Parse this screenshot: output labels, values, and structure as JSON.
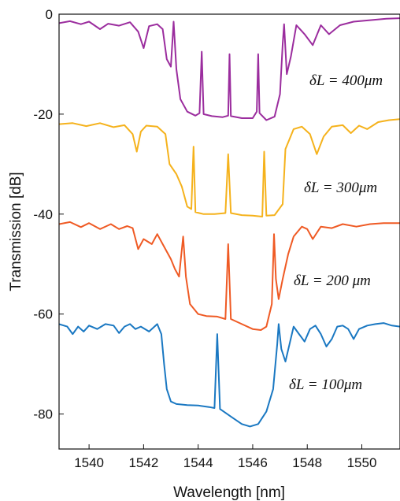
{
  "chart_data": {
    "type": "line",
    "title": "",
    "xlabel": "Wavelength [nm]",
    "ylabel": "Transmission [dB]",
    "xlim": [
      1538.9,
      1551.4
    ],
    "ylim": [
      -87,
      0
    ],
    "xticks": [
      1540,
      1542,
      1544,
      1546,
      1548,
      1550
    ],
    "yticks": [
      0,
      -20,
      -40,
      -60,
      -80
    ],
    "grid": false,
    "legend": "none",
    "series": [
      {
        "color": "#9b2d9e",
        "annotation": "δL = 400μm",
        "points": [
          [
            1538.9,
            -1.8
          ],
          [
            1539.3,
            -1.4
          ],
          [
            1539.7,
            -2.0
          ],
          [
            1540.0,
            -1.5
          ],
          [
            1540.4,
            -3.0
          ],
          [
            1540.7,
            -1.9
          ],
          [
            1541.1,
            -2.3
          ],
          [
            1541.5,
            -1.6
          ],
          [
            1541.8,
            -3.5
          ],
          [
            1542.0,
            -6.8
          ],
          [
            1542.2,
            -2.4
          ],
          [
            1542.5,
            -2.0
          ],
          [
            1542.7,
            -3.0
          ],
          [
            1542.85,
            -9.0
          ],
          [
            1543.0,
            -10.5
          ],
          [
            1543.1,
            -1.5
          ],
          [
            1543.2,
            -11.0
          ],
          [
            1543.35,
            -17.0
          ],
          [
            1543.6,
            -19.5
          ],
          [
            1543.9,
            -20.3
          ],
          [
            1544.05,
            -19.8
          ],
          [
            1544.13,
            -7.5
          ],
          [
            1544.2,
            -20.0
          ],
          [
            1544.5,
            -20.4
          ],
          [
            1544.9,
            -20.6
          ],
          [
            1545.1,
            -20.3
          ],
          [
            1545.15,
            -8.0
          ],
          [
            1545.2,
            -20.4
          ],
          [
            1545.6,
            -20.8
          ],
          [
            1546.0,
            -20.8
          ],
          [
            1546.15,
            -19.5
          ],
          [
            1546.2,
            -8.0
          ],
          [
            1546.25,
            -19.8
          ],
          [
            1546.5,
            -21.2
          ],
          [
            1546.8,
            -20.5
          ],
          [
            1547.0,
            -16.0
          ],
          [
            1547.1,
            -6.0
          ],
          [
            1547.15,
            -2.0
          ],
          [
            1547.25,
            -12.0
          ],
          [
            1547.4,
            -8.5
          ],
          [
            1547.6,
            -2.2
          ],
          [
            1547.9,
            -4.0
          ],
          [
            1548.2,
            -6.2
          ],
          [
            1548.5,
            -2.2
          ],
          [
            1548.8,
            -4.0
          ],
          [
            1549.2,
            -2.2
          ],
          [
            1549.7,
            -1.5
          ],
          [
            1550.3,
            -1.2
          ],
          [
            1550.9,
            -0.9
          ],
          [
            1551.4,
            -0.8
          ]
        ]
      },
      {
        "color": "#f5b21c",
        "annotation": "δL = 300μm",
        "points": [
          [
            1538.9,
            -22.0
          ],
          [
            1539.4,
            -21.8
          ],
          [
            1539.9,
            -22.4
          ],
          [
            1540.4,
            -21.8
          ],
          [
            1540.9,
            -22.6
          ],
          [
            1541.3,
            -22.2
          ],
          [
            1541.6,
            -24.0
          ],
          [
            1541.75,
            -27.5
          ],
          [
            1541.9,
            -23.5
          ],
          [
            1542.1,
            -22.3
          ],
          [
            1542.5,
            -22.5
          ],
          [
            1542.8,
            -24.0
          ],
          [
            1542.95,
            -30.0
          ],
          [
            1543.2,
            -32.0
          ],
          [
            1543.4,
            -34.5
          ],
          [
            1543.6,
            -38.5
          ],
          [
            1543.75,
            -39.0
          ],
          [
            1543.83,
            -26.5
          ],
          [
            1543.9,
            -39.6
          ],
          [
            1544.2,
            -40.0
          ],
          [
            1544.6,
            -40.0
          ],
          [
            1545.0,
            -39.8
          ],
          [
            1545.1,
            -28.0
          ],
          [
            1545.2,
            -39.8
          ],
          [
            1545.6,
            -40.2
          ],
          [
            1546.0,
            -40.3
          ],
          [
            1546.35,
            -40.5
          ],
          [
            1546.42,
            -27.5
          ],
          [
            1546.5,
            -40.3
          ],
          [
            1546.8,
            -40.2
          ],
          [
            1547.1,
            -38.0
          ],
          [
            1547.2,
            -27.0
          ],
          [
            1547.35,
            -25.0
          ],
          [
            1547.5,
            -23.0
          ],
          [
            1547.8,
            -22.5
          ],
          [
            1548.1,
            -24.0
          ],
          [
            1548.35,
            -28.0
          ],
          [
            1548.6,
            -24.5
          ],
          [
            1548.9,
            -22.5
          ],
          [
            1549.3,
            -22.2
          ],
          [
            1549.6,
            -23.8
          ],
          [
            1549.9,
            -22.3
          ],
          [
            1550.2,
            -23.0
          ],
          [
            1550.6,
            -21.6
          ],
          [
            1551.0,
            -21.2
          ],
          [
            1551.4,
            -21.0
          ]
        ]
      },
      {
        "color": "#ef5a24",
        "annotation": "δL = 200 μm",
        "points": [
          [
            1538.9,
            -42.0
          ],
          [
            1539.3,
            -41.6
          ],
          [
            1539.7,
            -42.6
          ],
          [
            1540.0,
            -41.8
          ],
          [
            1540.4,
            -43.0
          ],
          [
            1540.8,
            -42.0
          ],
          [
            1541.1,
            -43.0
          ],
          [
            1541.4,
            -42.4
          ],
          [
            1541.6,
            -42.8
          ],
          [
            1541.8,
            -47.0
          ],
          [
            1542.0,
            -45.0
          ],
          [
            1542.3,
            -46.0
          ],
          [
            1542.5,
            -44.0
          ],
          [
            1542.7,
            -46.0
          ],
          [
            1542.85,
            -47.5
          ],
          [
            1543.0,
            -49.0
          ],
          [
            1543.15,
            -51.0
          ],
          [
            1543.3,
            -52.5
          ],
          [
            1543.45,
            -44.5
          ],
          [
            1543.55,
            -52.5
          ],
          [
            1543.7,
            -58.0
          ],
          [
            1544.0,
            -60.0
          ],
          [
            1544.3,
            -60.4
          ],
          [
            1544.7,
            -60.5
          ],
          [
            1545.0,
            -61.0
          ],
          [
            1545.1,
            -46.0
          ],
          [
            1545.2,
            -61.0
          ],
          [
            1545.6,
            -62.0
          ],
          [
            1546.0,
            -63.0
          ],
          [
            1546.3,
            -63.2
          ],
          [
            1546.5,
            -62.5
          ],
          [
            1546.7,
            -58.0
          ],
          [
            1546.78,
            -44.0
          ],
          [
            1546.85,
            -53.0
          ],
          [
            1546.95,
            -57.0
          ],
          [
            1547.1,
            -53.0
          ],
          [
            1547.3,
            -48.0
          ],
          [
            1547.5,
            -44.5
          ],
          [
            1547.8,
            -42.5
          ],
          [
            1548.0,
            -43.0
          ],
          [
            1548.2,
            -45.0
          ],
          [
            1548.5,
            -42.5
          ],
          [
            1548.9,
            -42.8
          ],
          [
            1549.3,
            -42.0
          ],
          [
            1549.8,
            -42.5
          ],
          [
            1550.3,
            -42.0
          ],
          [
            1550.8,
            -41.8
          ],
          [
            1551.4,
            -41.8
          ]
        ]
      },
      {
        "color": "#1a78c2",
        "annotation": "δL = 100μm",
        "points": [
          [
            1538.9,
            -62.0
          ],
          [
            1539.2,
            -62.5
          ],
          [
            1539.4,
            -64.0
          ],
          [
            1539.6,
            -62.5
          ],
          [
            1539.8,
            -63.5
          ],
          [
            1540.0,
            -62.3
          ],
          [
            1540.3,
            -63.0
          ],
          [
            1540.6,
            -62.0
          ],
          [
            1540.9,
            -62.3
          ],
          [
            1541.1,
            -63.8
          ],
          [
            1541.3,
            -62.5
          ],
          [
            1541.5,
            -62.0
          ],
          [
            1541.7,
            -63.0
          ],
          [
            1541.9,
            -62.5
          ],
          [
            1542.2,
            -63.5
          ],
          [
            1542.5,
            -62.0
          ],
          [
            1542.65,
            -64.0
          ],
          [
            1542.75,
            -70.0
          ],
          [
            1542.85,
            -75.0
          ],
          [
            1543.0,
            -77.5
          ],
          [
            1543.2,
            -78.0
          ],
          [
            1543.6,
            -78.2
          ],
          [
            1544.0,
            -78.3
          ],
          [
            1544.4,
            -78.6
          ],
          [
            1544.6,
            -78.8
          ],
          [
            1544.7,
            -64.0
          ],
          [
            1544.8,
            -79.0
          ],
          [
            1545.2,
            -80.5
          ],
          [
            1545.6,
            -82.0
          ],
          [
            1545.9,
            -82.5
          ],
          [
            1546.2,
            -82.0
          ],
          [
            1546.5,
            -79.5
          ],
          [
            1546.75,
            -75.0
          ],
          [
            1546.9,
            -66.0
          ],
          [
            1546.95,
            -62.0
          ],
          [
            1547.05,
            -67.0
          ],
          [
            1547.2,
            -69.5
          ],
          [
            1547.35,
            -66.0
          ],
          [
            1547.5,
            -62.5
          ],
          [
            1547.7,
            -64.0
          ],
          [
            1547.9,
            -65.5
          ],
          [
            1548.1,
            -63.0
          ],
          [
            1548.3,
            -62.3
          ],
          [
            1548.5,
            -64.0
          ],
          [
            1548.7,
            -66.5
          ],
          [
            1548.9,
            -65.0
          ],
          [
            1549.1,
            -62.5
          ],
          [
            1549.3,
            -62.3
          ],
          [
            1549.5,
            -63.0
          ],
          [
            1549.7,
            -65.0
          ],
          [
            1549.9,
            -63.0
          ],
          [
            1550.2,
            -62.3
          ],
          [
            1550.5,
            -62.0
          ],
          [
            1550.8,
            -61.8
          ],
          [
            1551.1,
            -62.3
          ],
          [
            1551.4,
            -62.5
          ]
        ]
      }
    ]
  }
}
